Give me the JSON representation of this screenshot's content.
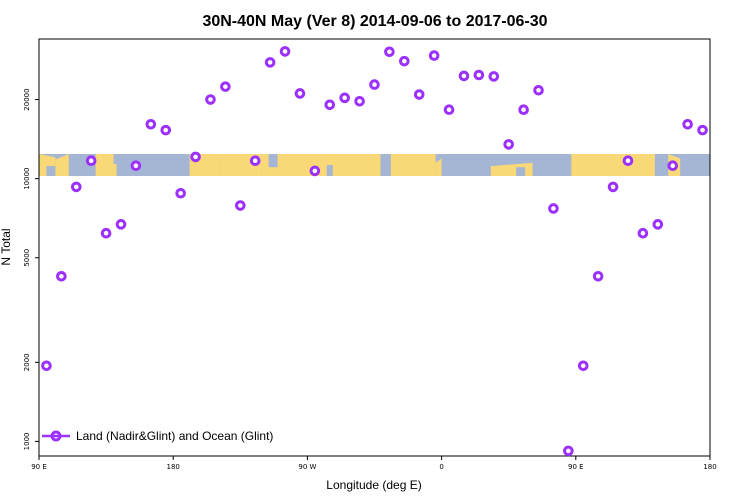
{
  "chart_data": {
    "type": "scatter",
    "title": "30N-40N May (Ver 8)   2014-09-06 to 2017-06-30",
    "xlabel": "Longitude (deg E)",
    "ylabel": "N Total",
    "xlim": [
      90,
      540
    ],
    "ylim": [
      880,
      34000
    ],
    "y_scale": "log",
    "grid": false,
    "legend_position": "bottom-left",
    "x_ticks": [
      {
        "value": 90,
        "label": "90 E"
      },
      {
        "value": 180,
        "label": "180"
      },
      {
        "value": 270,
        "label": "90 W"
      },
      {
        "value": 360,
        "label": "0"
      },
      {
        "value": 450,
        "label": "90 E"
      },
      {
        "value": 540,
        "label": "180"
      }
    ],
    "y_ticks": [
      {
        "value": 1000,
        "label": "1000"
      },
      {
        "value": 2000,
        "label": "2000"
      },
      {
        "value": 5000,
        "label": "5000"
      },
      {
        "value": 10000,
        "label": "10000"
      },
      {
        "value": 20000,
        "label": "20000"
      }
    ],
    "colors": {
      "marker": "#9b30ff",
      "ocean": "#a5b6d4",
      "land": "#f9d877"
    },
    "series": [
      {
        "name": "Land (Nadir&Glint) and Ocean (Glint)",
        "x": [
          95,
          105,
          115,
          125,
          135,
          145,
          155,
          165,
          175,
          185,
          195,
          205,
          215,
          225,
          235,
          245,
          255,
          265,
          275,
          285,
          295,
          305,
          315,
          325,
          335,
          345,
          355,
          365,
          375,
          385,
          395,
          405,
          415,
          425,
          435,
          445,
          455,
          465,
          475,
          485,
          495,
          505,
          515,
          525,
          535
        ],
        "y": [
          1940,
          4250,
          9300,
          11700,
          6200,
          6700,
          11200,
          16100,
          15300,
          8800,
          12100,
          20000,
          22400,
          7900,
          11700,
          27700,
          30500,
          21100,
          10700,
          19100,
          20300,
          19700,
          22800,
          30400,
          28000,
          20900,
          29400,
          18300,
          24600,
          24800,
          24500,
          13500,
          18300,
          21700,
          7700,
          920,
          1940,
          4250,
          9300,
          11700,
          6200,
          6700,
          11200,
          16100,
          15300
        ]
      }
    ]
  }
}
